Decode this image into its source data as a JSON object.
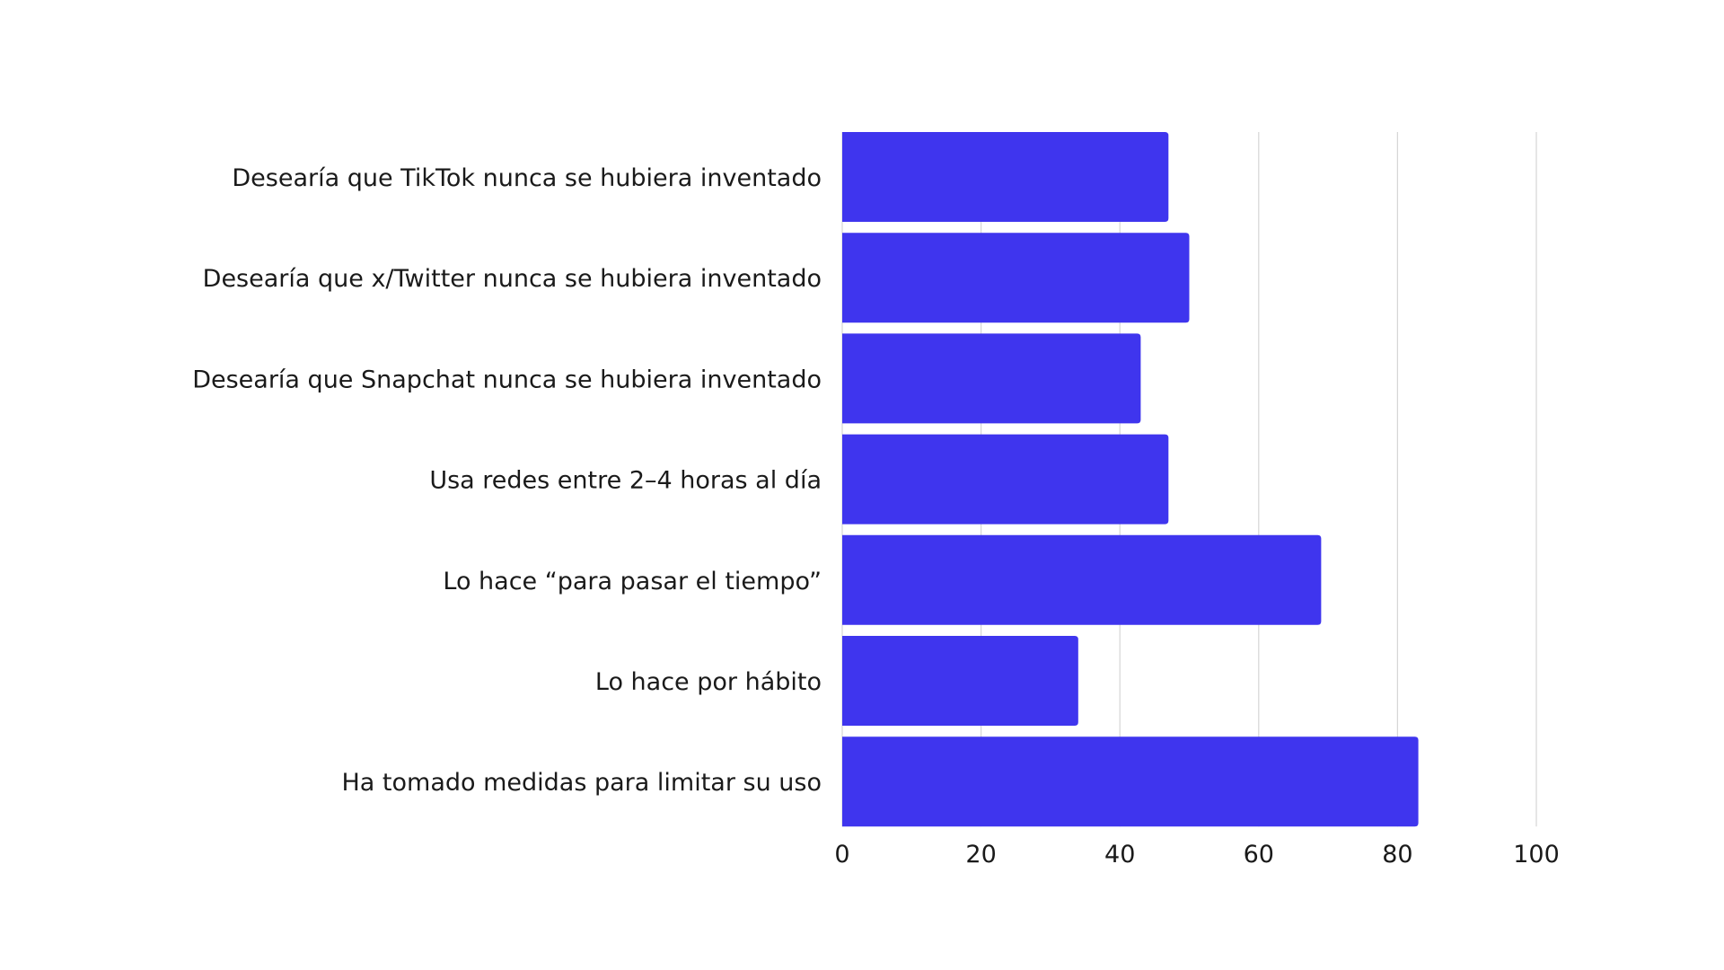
{
  "chart_data": {
    "type": "bar",
    "orientation": "horizontal",
    "categories": [
      "Desearía que TikTok nunca se hubiera inventado",
      "Desearía que x/Twitter nunca se hubiera inventado",
      "Desearía que Snapchat nunca se hubiera inventado",
      "Usa redes entre 2–4 horas al día",
      "Lo hace “para pasar el tiempo”",
      "Lo hace por hábito",
      "Ha tomado medidas para limitar su uso"
    ],
    "values": [
      47,
      50,
      43,
      47,
      69,
      34,
      83
    ],
    "xlim": [
      0,
      100
    ],
    "xticks": [
      "0",
      "20",
      "40",
      "60",
      "80",
      "100"
    ],
    "grid": true,
    "legend": "none",
    "colors": {
      "bar": "#3F35EE",
      "grid": "#d6d6d6",
      "text": "#1a1a1a"
    }
  }
}
